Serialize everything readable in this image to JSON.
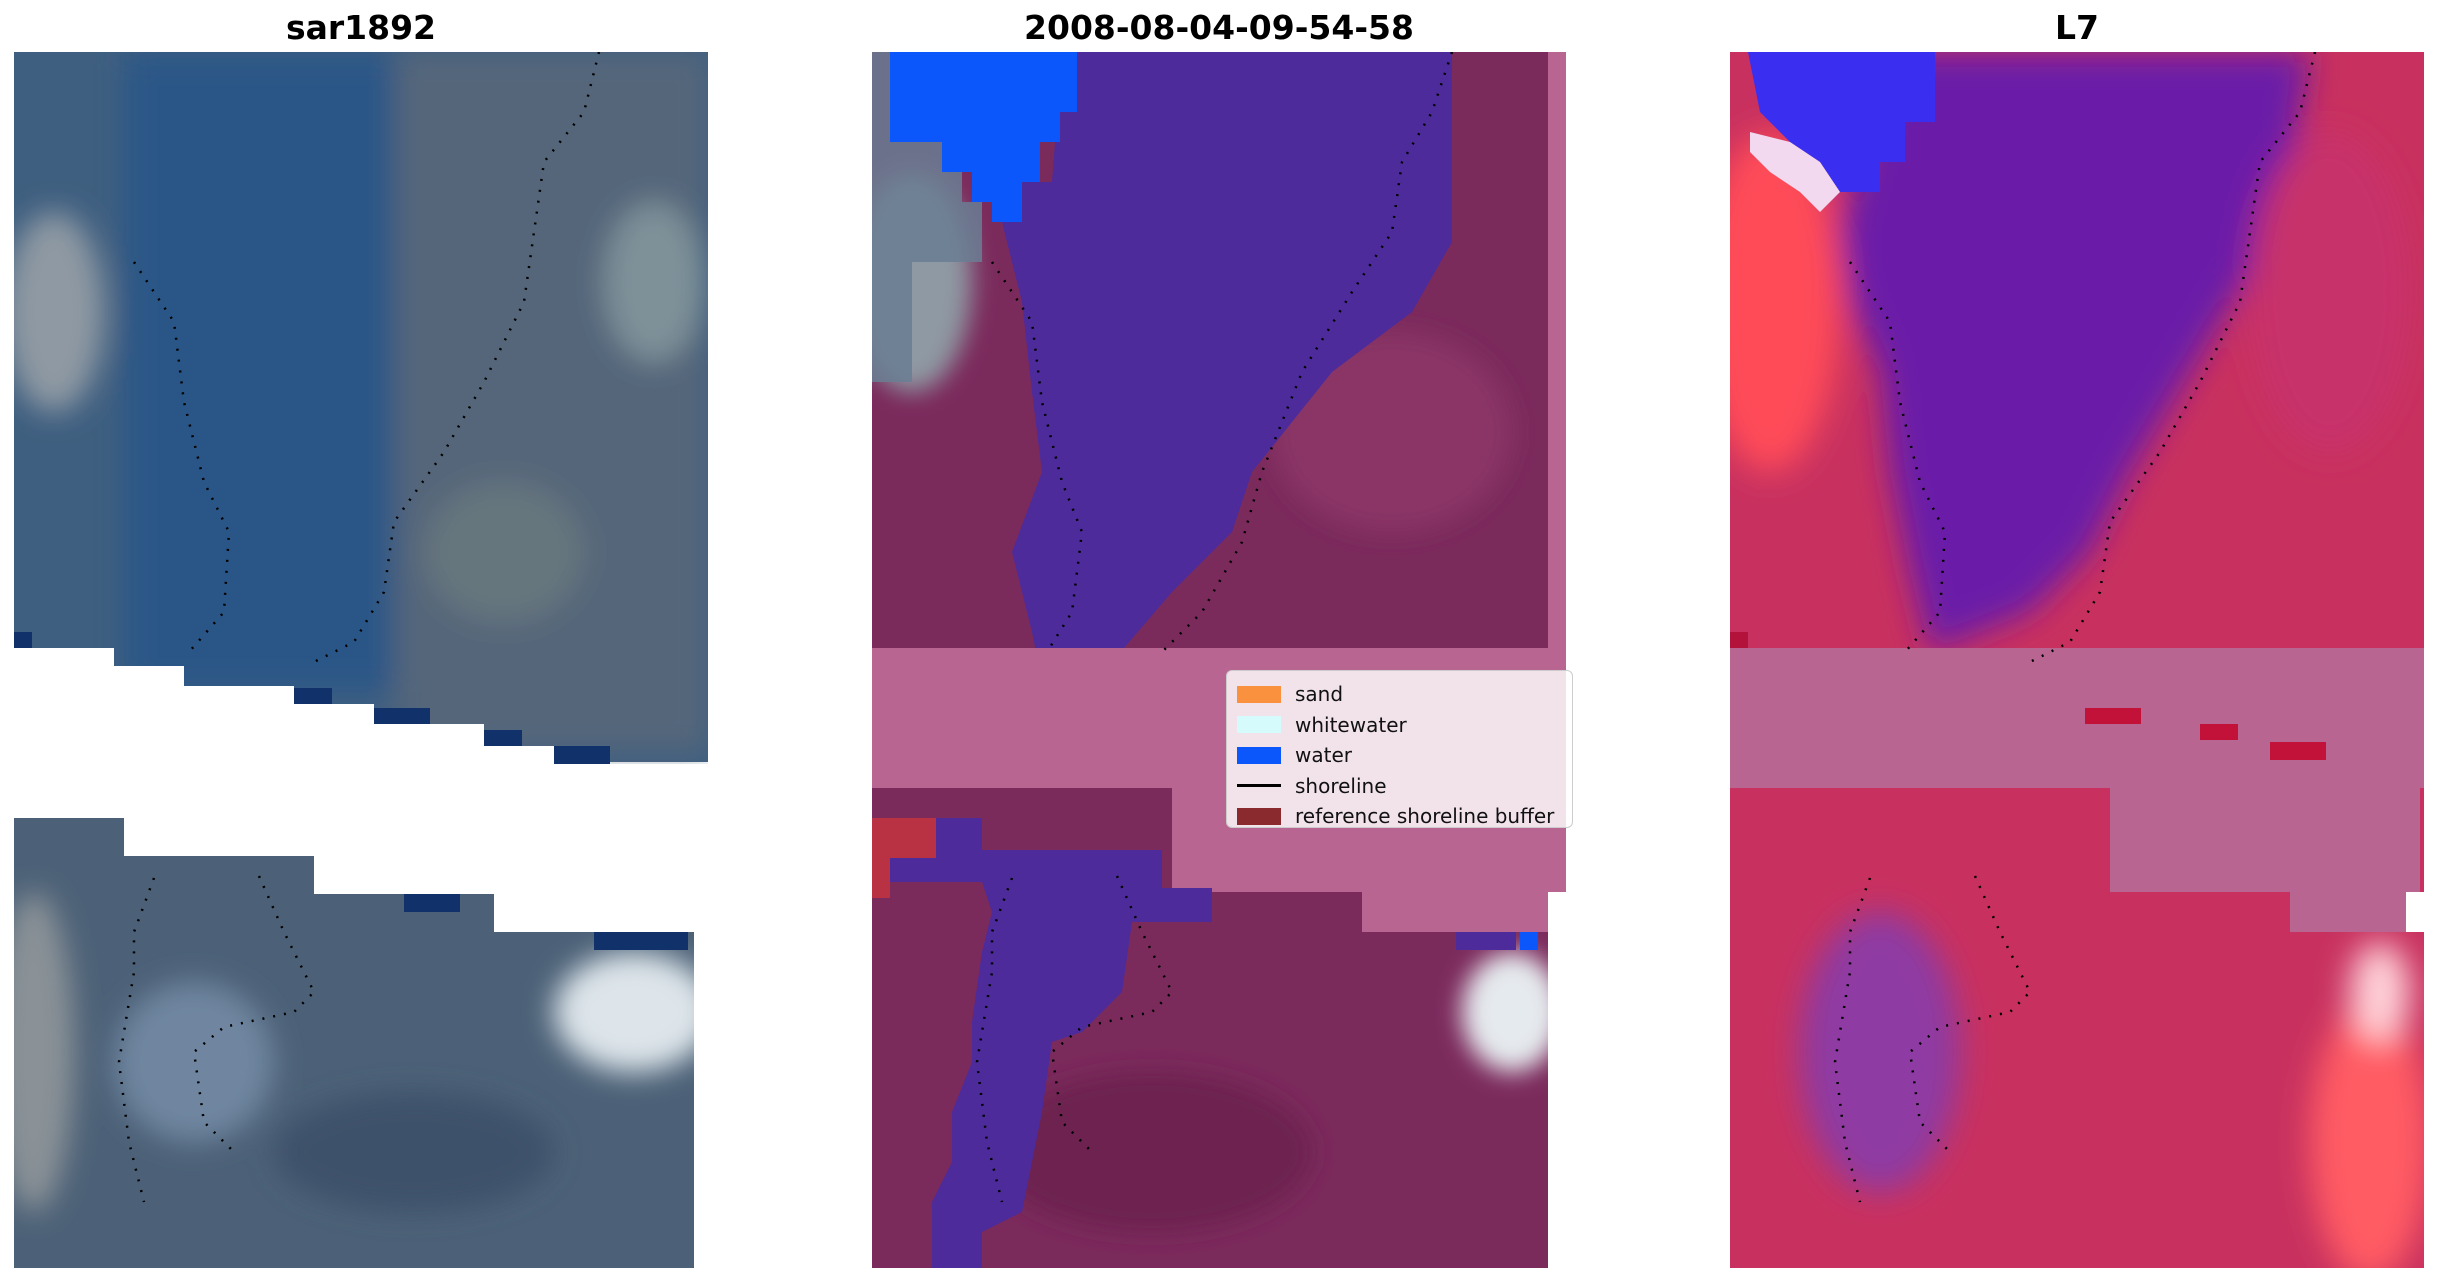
{
  "panels": [
    {
      "title": "sar1892"
    },
    {
      "title": "2008-08-04-09-54-58"
    },
    {
      "title": "L7"
    }
  ],
  "legend": {
    "items": [
      {
        "label": "sand",
        "color": "#f9913f",
        "kind": "patch"
      },
      {
        "label": "whitewater",
        "color": "#d5fbfd",
        "kind": "patch"
      },
      {
        "label": "water",
        "color": "#0c57fb",
        "kind": "patch"
      },
      {
        "label": "shoreline",
        "color": "#000000",
        "kind": "line"
      },
      {
        "label": "reference shoreline buffer",
        "color": "#8b2a2e",
        "kind": "patch"
      }
    ]
  },
  "colors": {
    "rgb_water": "#2d517c",
    "rgb_land": "#52667a",
    "rgb_bright": "#c9d6e6",
    "class_water": "#4d2b9b",
    "buffer_overlay": "#7b2a5c",
    "nodata_band": "#b96592",
    "mndwi_water": "#5b1aa8",
    "mndwi_land": "#c83066",
    "mndwi_sand": "#ff5a63"
  }
}
